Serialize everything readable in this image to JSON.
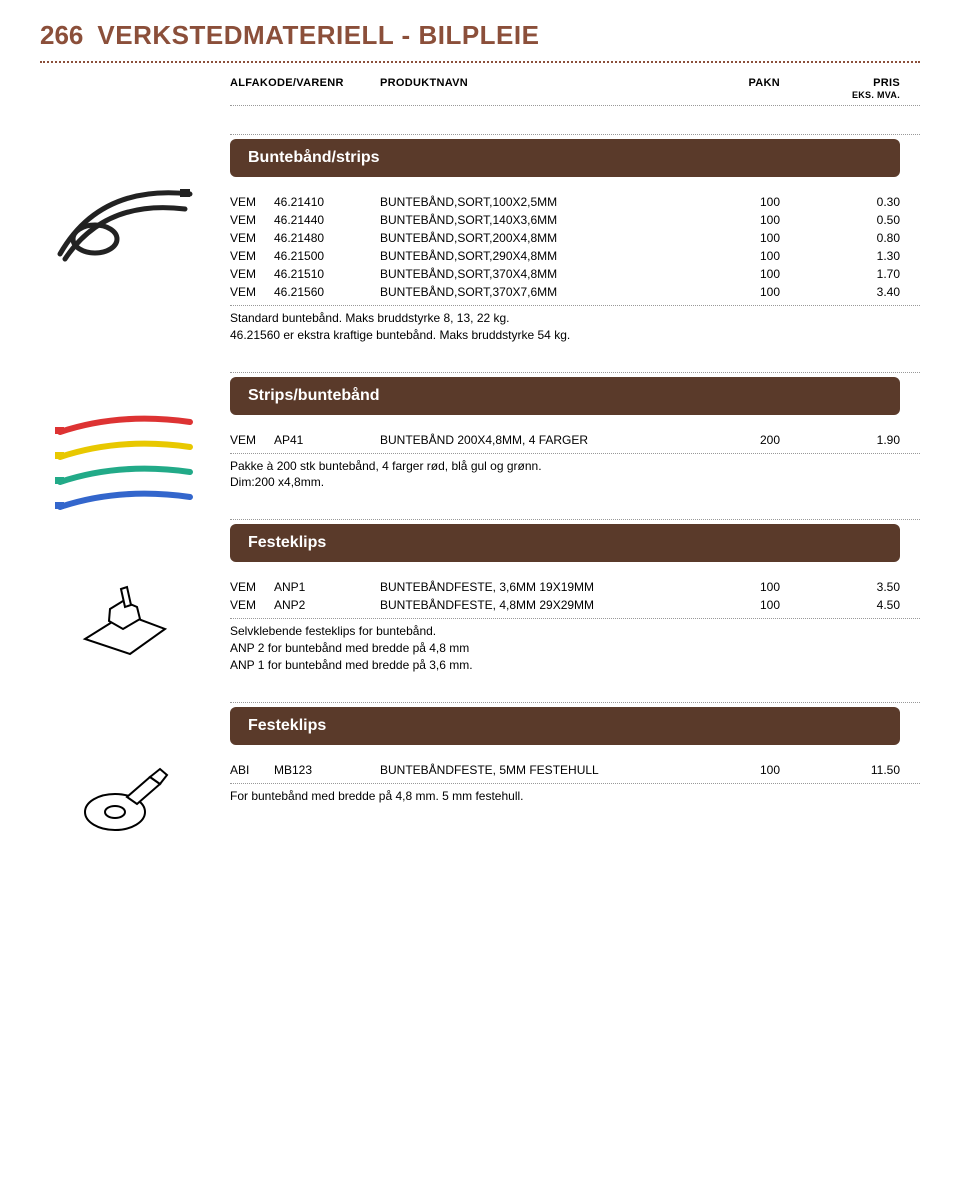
{
  "page_number": "266",
  "page_title": "VERKSTEDMATERIELL - BILPLEIE",
  "columns": {
    "code": "ALFAKODE/VARENR",
    "name": "PRODUKTNAVN",
    "pack": "PAKN",
    "price": "PRIS",
    "price_sub": "EKS. MVA."
  },
  "colors": {
    "accent": "#8b4f3a",
    "section_bg": "#5a3a2a",
    "section_text": "#ffffff",
    "dotted": "#999999"
  },
  "sections": [
    {
      "title": "Buntebånd/strips",
      "rows": [
        {
          "prefix": "VEM",
          "code": "46.21410",
          "name": "BUNTEBÅND,SORT,100X2,5MM",
          "pack": "100",
          "price": "0.30"
        },
        {
          "prefix": "VEM",
          "code": "46.21440",
          "name": "BUNTEBÅND,SORT,140X3,6MM",
          "pack": "100",
          "price": "0.50"
        },
        {
          "prefix": "VEM",
          "code": "46.21480",
          "name": "BUNTEBÅND,SORT,200X4,8MM",
          "pack": "100",
          "price": "0.80"
        },
        {
          "prefix": "VEM",
          "code": "46.21500",
          "name": "BUNTEBÅND,SORT,290X4,8MM",
          "pack": "100",
          "price": "1.30"
        },
        {
          "prefix": "VEM",
          "code": "46.21510",
          "name": "BUNTEBÅND,SORT,370X4,8MM",
          "pack": "100",
          "price": "1.70"
        },
        {
          "prefix": "VEM",
          "code": "46.21560",
          "name": "BUNTEBÅND,SORT,370X7,6MM",
          "pack": "100",
          "price": "3.40"
        }
      ],
      "desc_lines": [
        "Standard buntebånd. Maks bruddstyrke 8, 13, 22 kg.",
        "46.21560 er ekstra kraftige buntebånd. Maks bruddstyrke 54 kg."
      ]
    },
    {
      "title": "Strips/buntebånd",
      "rows": [
        {
          "prefix": "VEM",
          "code": "AP41",
          "name": "BUNTEBÅND 200X4,8MM, 4 FARGER",
          "pack": "200",
          "price": "1.90"
        }
      ],
      "desc_lines": [
        "Pakke à 200 stk buntebånd, 4 farger rød, blå gul og grønn.",
        "Dim:200 x4,8mm."
      ]
    },
    {
      "title": "Festeklips",
      "rows": [
        {
          "prefix": "VEM",
          "code": "ANP1",
          "name": "BUNTEBÅNDFESTE, 3,6MM 19X19MM",
          "pack": "100",
          "price": "3.50"
        },
        {
          "prefix": "VEM",
          "code": "ANP2",
          "name": "BUNTEBÅNDFESTE, 4,8MM 29X29MM",
          "pack": "100",
          "price": "4.50"
        }
      ],
      "desc_lines": [
        "Selvklebende festeklips for buntebånd.",
        "ANP 2  for buntebånd med bredde på 4,8 mm",
        "ANP 1  for buntebånd med bredde på 3,6 mm."
      ]
    },
    {
      "title": "Festeklips",
      "rows": [
        {
          "prefix": "ABI",
          "code": "MB123",
          "name": "BUNTEBÅNDFESTE, 5MM FESTEHULL",
          "pack": "100",
          "price": "11.50"
        }
      ],
      "desc_lines": [
        "For buntebånd med bredde på 4,8 mm. 5 mm festehull."
      ]
    }
  ]
}
